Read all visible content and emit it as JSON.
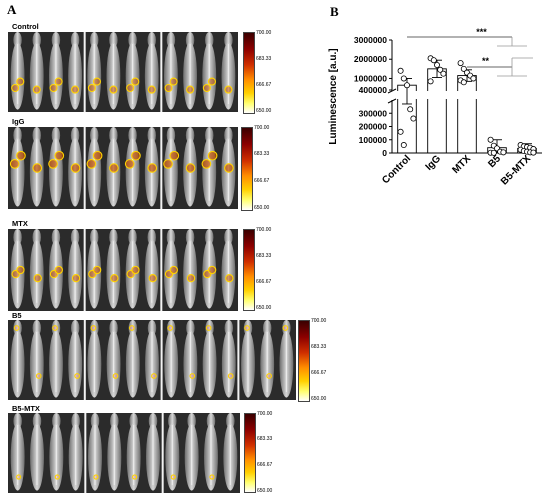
{
  "panels": {
    "a_label": "A",
    "b_label": "B"
  },
  "groups": [
    {
      "key": "control",
      "label": "Control",
      "scale": [
        "700.00",
        "683.33",
        "666.67",
        "650.00"
      ]
    },
    {
      "key": "igg",
      "label": "IgG",
      "scale": [
        "700.00",
        "683.33",
        "666.67",
        "650.00"
      ]
    },
    {
      "key": "mtx",
      "label": "MTX",
      "scale": [
        "700.00",
        "683.33",
        "666.67",
        "650.00"
      ]
    },
    {
      "key": "b5",
      "label": "B5",
      "scale": [
        "700.00",
        "683.33",
        "666.67",
        "650.00"
      ]
    },
    {
      "key": "b5mtx",
      "label": "B5-MTX",
      "scale": [
        "700.00",
        "683.33",
        "666.67",
        "650.00"
      ]
    }
  ],
  "chart_data": {
    "type": "bar",
    "ylabel": "Luminescence [a.u.]",
    "categories": [
      "Control",
      "IgG",
      "MTX",
      "B5",
      "B5-MTX"
    ],
    "axis": {
      "broken": true,
      "lower_range": [
        0,
        400000
      ],
      "upper_range": [
        400000,
        3000000
      ],
      "lower_ticks": [
        "0",
        "100000",
        "200000",
        "300000",
        "400000"
      ],
      "upper_ticks": [
        "1000000",
        "2000000",
        "3000000"
      ]
    },
    "bars": [
      {
        "category": "Control",
        "mean": 650000,
        "sd_low": 370000,
        "sd_high": 1000000,
        "points": [
          1400000,
          1000000,
          650000,
          330000,
          260000,
          160000,
          60000
        ]
      },
      {
        "category": "IgG",
        "mean": 1500000,
        "sd_low": 1050000,
        "sd_high": 1950000,
        "points": [
          2050000,
          1950000,
          1700000,
          1450000,
          1250000,
          850000
        ]
      },
      {
        "category": "MTX",
        "mean": 1150000,
        "sd_low": 850000,
        "sd_high": 1450000,
        "points": [
          1800000,
          1500000,
          1300000,
          1150000,
          1000000,
          900000,
          800000
        ]
      },
      {
        "category": "B5",
        "mean": 40000,
        "sd_low": 0,
        "sd_high": 100000,
        "points": [
          100000,
          55000,
          35000,
          10000,
          5000,
          2000,
          1000
        ]
      },
      {
        "category": "B5-MTX",
        "mean": 35000,
        "sd_low": 5000,
        "sd_high": 70000,
        "points": [
          60000,
          50000,
          45000,
          40000,
          30000,
          25000,
          15000,
          10000,
          5000,
          3000
        ]
      }
    ],
    "significance": [
      {
        "label": "***",
        "from": [
          "Control",
          "IgG",
          "MTX"
        ],
        "to": [
          "B5",
          "B5-MTX"
        ]
      },
      {
        "label": "**",
        "from": [
          "Control",
          "IgG",
          "MTX"
        ],
        "to": [
          "B5",
          "B5-MTX"
        ]
      }
    ]
  }
}
